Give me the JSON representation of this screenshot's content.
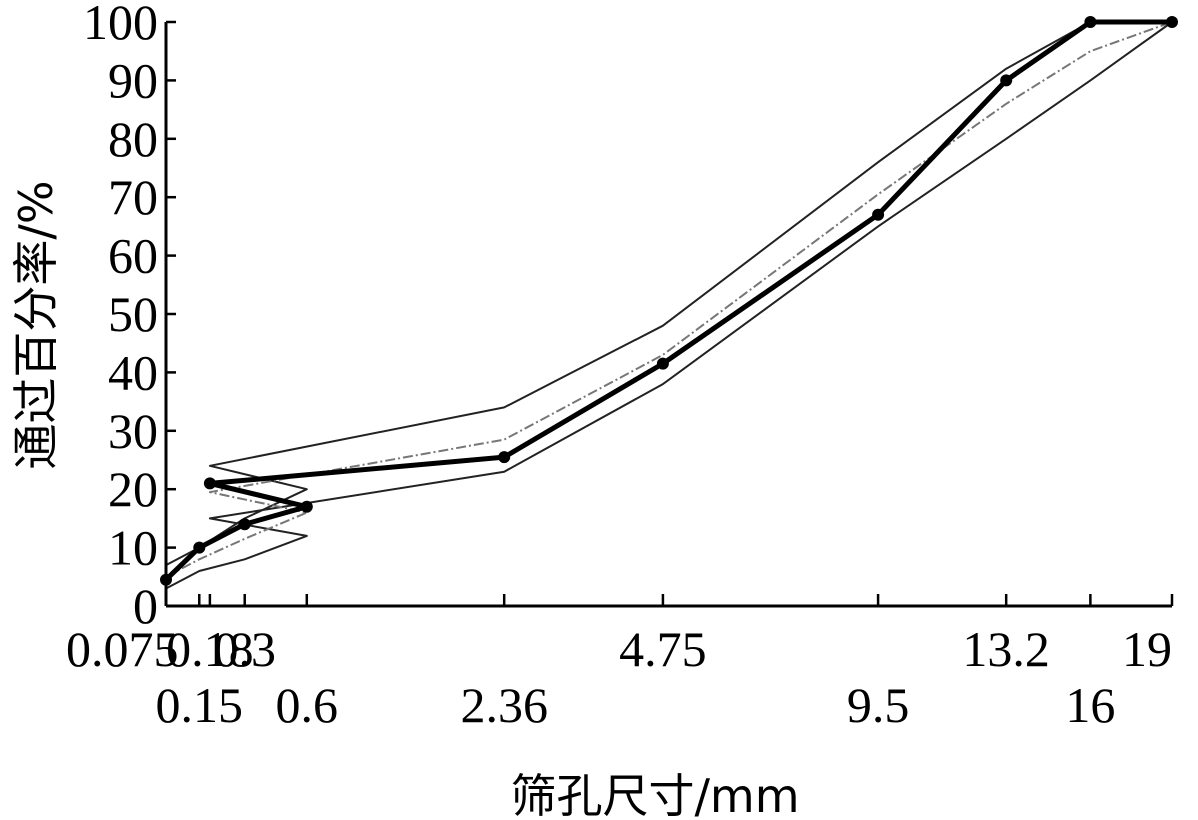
{
  "chart_data": {
    "type": "line",
    "xlabel": "筛孔尺寸/mm",
    "ylabel": "通过百分率/%",
    "ylim": [
      0,
      100
    ],
    "y_ticks": [
      0,
      10,
      20,
      30,
      40,
      50,
      60,
      70,
      80,
      90,
      100
    ],
    "x_scale": "power-0.45",
    "categories": [
      "0.075",
      "0.15",
      "0.3",
      "0.6",
      "0.18",
      "2.36",
      "4.75",
      "9.5",
      "13.2",
      "16",
      "19"
    ],
    "x_tick_labels_top": [
      "0.075",
      "0.3",
      "0.18",
      "4.75",
      "13.2",
      "19"
    ],
    "x_tick_labels_bottom": [
      "0.15",
      "0.6",
      "2.36",
      "9.5",
      "16"
    ],
    "grid": false,
    "legend": "none",
    "series": [
      {
        "style": "upper-limit",
        "values": [
          7,
          10,
          15,
          20,
          24,
          34,
          48,
          76,
          92,
          100,
          100
        ]
      },
      {
        "style": "lower-limit",
        "values": [
          3,
          6,
          8,
          12,
          15,
          23,
          38,
          65,
          80,
          90,
          100
        ]
      },
      {
        "style": "median",
        "values": [
          5,
          8,
          11.5,
          16,
          19.5,
          28.5,
          43,
          70.5,
          86,
          95,
          100
        ]
      },
      {
        "style": "gradation",
        "values": [
          4.5,
          10,
          14,
          17,
          21,
          25.5,
          41.5,
          67,
          90,
          100,
          100
        ]
      }
    ]
  }
}
